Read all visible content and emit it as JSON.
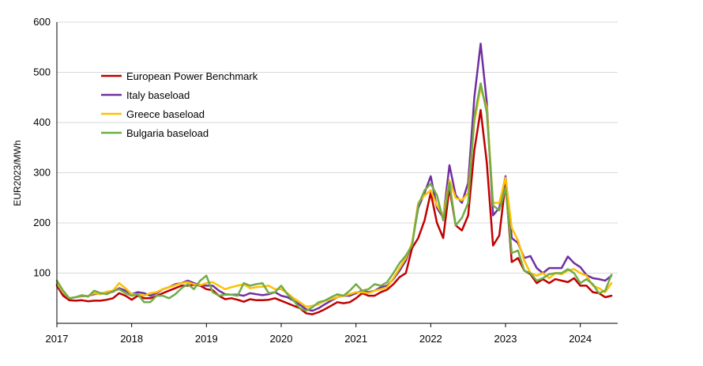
{
  "chart_data": {
    "type": "line",
    "title": "",
    "xlabel": "",
    "ylabel": "EUR2023/MWh",
    "ylim": [
      0,
      600
    ],
    "y_ticks": [
      100,
      200,
      300,
      400,
      500,
      600
    ],
    "xlim": [
      2017,
      2024.5
    ],
    "x_ticks": [
      "2017",
      "2018",
      "2019",
      "2020",
      "2021",
      "2022",
      "2023",
      "2024"
    ],
    "grid": "horizontal",
    "legend_position": "top-left",
    "x": [
      2017.0,
      2017.083,
      2017.167,
      2017.25,
      2017.333,
      2017.417,
      2017.5,
      2017.583,
      2017.667,
      2017.75,
      2017.833,
      2017.917,
      2018.0,
      2018.083,
      2018.167,
      2018.25,
      2018.333,
      2018.417,
      2018.5,
      2018.583,
      2018.667,
      2018.75,
      2018.833,
      2018.917,
      2019.0,
      2019.083,
      2019.167,
      2019.25,
      2019.333,
      2019.417,
      2019.5,
      2019.583,
      2019.667,
      2019.75,
      2019.833,
      2019.917,
      2020.0,
      2020.083,
      2020.167,
      2020.25,
      2020.333,
      2020.417,
      2020.5,
      2020.583,
      2020.667,
      2020.75,
      2020.833,
      2020.917,
      2021.0,
      2021.083,
      2021.167,
      2021.25,
      2021.333,
      2021.417,
      2021.5,
      2021.583,
      2021.667,
      2021.75,
      2021.833,
      2021.917,
      2022.0,
      2022.083,
      2022.167,
      2022.25,
      2022.333,
      2022.417,
      2022.5,
      2022.583,
      2022.667,
      2022.75,
      2022.833,
      2022.917,
      2023.0,
      2023.083,
      2023.167,
      2023.25,
      2023.333,
      2023.417,
      2023.5,
      2023.583,
      2023.667,
      2023.75,
      2023.833,
      2023.917,
      2024.0,
      2024.083,
      2024.167,
      2024.25,
      2024.333,
      2024.417
    ],
    "series": [
      {
        "name": "European Power Benchmark",
        "color": "#c00000",
        "values": [
          75,
          55,
          46,
          45,
          46,
          44,
          45,
          45,
          47,
          50,
          60,
          55,
          47,
          55,
          50,
          50,
          55,
          60,
          65,
          70,
          75,
          75,
          77,
          75,
          68,
          66,
          55,
          48,
          50,
          47,
          43,
          48,
          46,
          46,
          47,
          50,
          45,
          40,
          35,
          30,
          20,
          18,
          22,
          28,
          35,
          42,
          40,
          42,
          50,
          60,
          55,
          55,
          62,
          67,
          78,
          92,
          100,
          150,
          170,
          205,
          260,
          200,
          170,
          270,
          195,
          185,
          215,
          345,
          425,
          320,
          155,
          175,
          280,
          122,
          130,
          105,
          98,
          80,
          88,
          80,
          88,
          85,
          82,
          90,
          75,
          75,
          62,
          60,
          52,
          55
        ]
      },
      {
        "name": "Italy baseload",
        "color": "#7030a0",
        "values": [
          78,
          60,
          50,
          52,
          54,
          55,
          58,
          60,
          60,
          63,
          70,
          65,
          58,
          62,
          60,
          55,
          60,
          68,
          72,
          78,
          80,
          85,
          80,
          76,
          75,
          75,
          65,
          58,
          57,
          57,
          55,
          60,
          58,
          56,
          58,
          62,
          55,
          52,
          45,
          37,
          28,
          25,
          30,
          38,
          45,
          52,
          55,
          55,
          60,
          65,
          62,
          65,
          72,
          75,
          88,
          105,
          125,
          160,
          230,
          260,
          293,
          230,
          210,
          315,
          255,
          240,
          280,
          450,
          557,
          440,
          215,
          230,
          293,
          170,
          160,
          130,
          134,
          110,
          100,
          110,
          110,
          110,
          133,
          120,
          112,
          96,
          90,
          88,
          85,
          95
        ]
      },
      {
        "name": "Greece baseload",
        "color": "#ffc000",
        "values": [
          80,
          62,
          50,
          52,
          55,
          55,
          60,
          58,
          63,
          65,
          80,
          70,
          58,
          58,
          55,
          60,
          62,
          68,
          72,
          76,
          80,
          82,
          78,
          76,
          80,
          82,
          75,
          68,
          72,
          75,
          78,
          70,
          72,
          73,
          75,
          68,
          68,
          60,
          50,
          42,
          33,
          35,
          38,
          45,
          48,
          52,
          55,
          58,
          62,
          62,
          60,
          65,
          68,
          72,
          90,
          110,
          130,
          160,
          240,
          255,
          265,
          235,
          215,
          285,
          250,
          245,
          260,
          400,
          470,
          430,
          240,
          240,
          290,
          190,
          165,
          125,
          100,
          95,
          100,
          90,
          100,
          98,
          105,
          108,
          100,
          95,
          75,
          70,
          62,
          80
        ]
      },
      {
        "name": "Bulgaria baseload",
        "color": "#70ad47",
        "values": [
          85,
          65,
          50,
          52,
          56,
          53,
          65,
          60,
          58,
          64,
          68,
          60,
          55,
          58,
          42,
          42,
          55,
          55,
          50,
          58,
          70,
          78,
          68,
          85,
          95,
          62,
          55,
          57,
          57,
          55,
          80,
          75,
          78,
          80,
          60,
          62,
          75,
          58,
          45,
          30,
          25,
          32,
          42,
          45,
          52,
          58,
          55,
          65,
          78,
          65,
          68,
          78,
          75,
          82,
          100,
          120,
          135,
          155,
          235,
          265,
          278,
          255,
          205,
          280,
          195,
          210,
          240,
          410,
          478,
          420,
          235,
          225,
          270,
          140,
          145,
          105,
          100,
          85,
          90,
          98,
          100,
          100,
          108,
          100,
          80,
          88,
          78,
          60,
          65,
          97
        ]
      }
    ]
  }
}
